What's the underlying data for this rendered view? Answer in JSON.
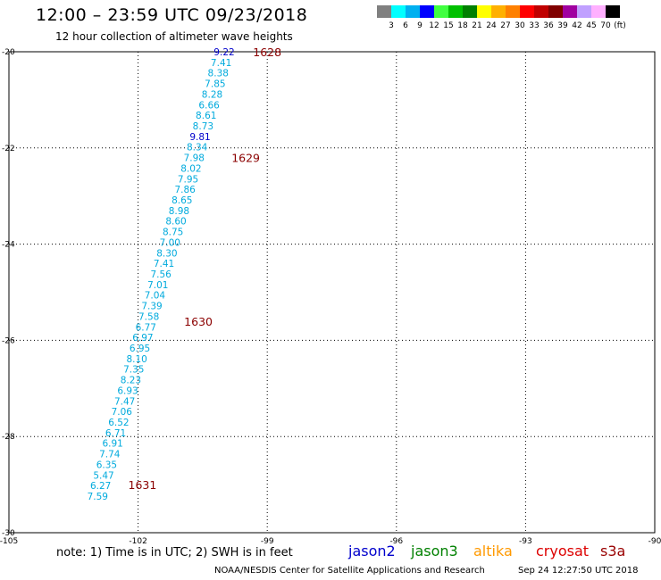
{
  "header": {
    "title": "12:00 – 23:59 UTC 09/23/2018",
    "subtitle": "12 hour collection of altimeter wave heights"
  },
  "legend": {
    "colors": [
      "#808080",
      "#00ffff",
      "#00b0f0",
      "#0000ff",
      "#40ff40",
      "#00c000",
      "#008000",
      "#ffff00",
      "#ffb000",
      "#ff8000",
      "#ff0000",
      "#c00000",
      "#800000",
      "#a000a0",
      "#c0a0ff",
      "#ffb0ff",
      "#000000"
    ],
    "labels": [
      "3",
      "6",
      "9",
      "12",
      "15",
      "18",
      "21",
      "24",
      "27",
      "30",
      "33",
      "36",
      "39",
      "42",
      "45",
      "70",
      "(ft)"
    ]
  },
  "footer": {
    "note": "note:  1) Time is in UTC;  2) SWH is in feet",
    "satellites": [
      {
        "name": "jason2",
        "color": "#0000cc"
      },
      {
        "name": "jason3",
        "color": "#008000"
      },
      {
        "name": "altika",
        "color": "#ff9900"
      },
      {
        "name": "cryosat",
        "color": "#dd0000"
      },
      {
        "name": "s3a",
        "color": "#990000"
      }
    ],
    "credit": "NOAA/NESDIS Center for Satellite Applications and Research",
    "timestamp": "Sep 24 12:27:50 UTC 2018"
  },
  "chart_data": {
    "type": "scatter",
    "xlim": [
      -105,
      -90
    ],
    "ylim": [
      -30,
      -20
    ],
    "xticks": [
      -105,
      -102,
      -99,
      -96,
      -93,
      -90
    ],
    "yticks": [
      -20,
      -22,
      -24,
      -26,
      -28,
      -30
    ],
    "grid": true,
    "series": [
      {
        "color_main": "#00aadd",
        "color_high": "#0000cc",
        "points": [
          {
            "lon": -100.0,
            "lat": -20.0,
            "v": "9.22"
          },
          {
            "lon": -100.07,
            "lat": -20.22,
            "v": "7.41"
          },
          {
            "lon": -100.14,
            "lat": -20.44,
            "v": "8.38"
          },
          {
            "lon": -100.21,
            "lat": -20.66,
            "v": "7.85"
          },
          {
            "lon": -100.28,
            "lat": -20.88,
            "v": "8.28"
          },
          {
            "lon": -100.35,
            "lat": -21.1,
            "v": "6.66"
          },
          {
            "lon": -100.42,
            "lat": -21.32,
            "v": "8.61"
          },
          {
            "lon": -100.49,
            "lat": -21.54,
            "v": "8.73"
          },
          {
            "lon": -100.56,
            "lat": -21.76,
            "v": "9.81"
          },
          {
            "lon": -100.63,
            "lat": -21.98,
            "v": "8.34"
          },
          {
            "lon": -100.7,
            "lat": -22.2,
            "v": "7.98"
          },
          {
            "lon": -100.77,
            "lat": -22.42,
            "v": "8.02"
          },
          {
            "lon": -100.84,
            "lat": -22.64,
            "v": "7.95"
          },
          {
            "lon": -100.91,
            "lat": -22.86,
            "v": "7.86"
          },
          {
            "lon": -100.98,
            "lat": -23.08,
            "v": "8.65"
          },
          {
            "lon": -101.05,
            "lat": -23.3,
            "v": "8.98"
          },
          {
            "lon": -101.12,
            "lat": -23.52,
            "v": "8.60"
          },
          {
            "lon": -101.19,
            "lat": -23.74,
            "v": "8.75"
          },
          {
            "lon": -101.26,
            "lat": -23.96,
            "v": "7.00"
          },
          {
            "lon": -101.33,
            "lat": -24.18,
            "v": "8.30"
          },
          {
            "lon": -101.4,
            "lat": -24.4,
            "v": "7.41"
          },
          {
            "lon": -101.47,
            "lat": -24.62,
            "v": "7.56"
          },
          {
            "lon": -101.54,
            "lat": -24.84,
            "v": "7.01"
          },
          {
            "lon": -101.61,
            "lat": -25.06,
            "v": "7.04"
          },
          {
            "lon": -101.68,
            "lat": -25.28,
            "v": "7.39"
          },
          {
            "lon": -101.75,
            "lat": -25.5,
            "v": "7.58"
          },
          {
            "lon": -101.82,
            "lat": -25.72,
            "v": "6.77"
          },
          {
            "lon": -101.89,
            "lat": -25.94,
            "v": "6.97"
          },
          {
            "lon": -101.96,
            "lat": -26.16,
            "v": "6.95"
          },
          {
            "lon": -102.03,
            "lat": -26.38,
            "v": "8.10"
          },
          {
            "lon": -102.1,
            "lat": -26.6,
            "v": "7.35"
          },
          {
            "lon": -102.17,
            "lat": -26.82,
            "v": "8.23"
          },
          {
            "lon": -102.24,
            "lat": -27.04,
            "v": "6.93"
          },
          {
            "lon": -102.31,
            "lat": -27.26,
            "v": "7.47"
          },
          {
            "lon": -102.38,
            "lat": -27.48,
            "v": "7.06"
          },
          {
            "lon": -102.45,
            "lat": -27.7,
            "v": "6.52"
          },
          {
            "lon": -102.52,
            "lat": -27.92,
            "v": "6.71"
          },
          {
            "lon": -102.59,
            "lat": -28.14,
            "v": "6.91"
          },
          {
            "lon": -102.66,
            "lat": -28.36,
            "v": "7.74"
          },
          {
            "lon": -102.73,
            "lat": -28.58,
            "v": "6.35"
          },
          {
            "lon": -102.8,
            "lat": -28.8,
            "v": "5.47"
          },
          {
            "lon": -102.87,
            "lat": -29.02,
            "v": "6.27"
          },
          {
            "lon": -102.94,
            "lat": -29.24,
            "v": "7.59"
          }
        ]
      }
    ],
    "orbit_labels": [
      {
        "label": "1628",
        "lon": -99.0,
        "lat": -20.0
      },
      {
        "label": "1629",
        "lon": -99.5,
        "lat": -22.2
      },
      {
        "label": "1630",
        "lon": -100.6,
        "lat": -25.6
      },
      {
        "label": "1631",
        "lon": -101.9,
        "lat": -29.0
      }
    ]
  }
}
